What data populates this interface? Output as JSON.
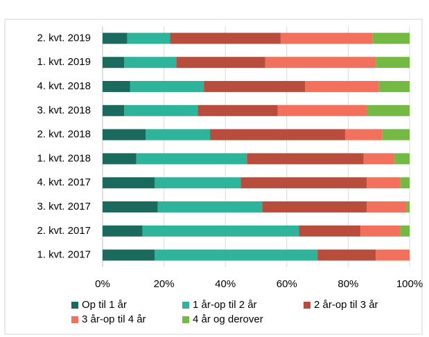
{
  "chart_data": {
    "type": "stacked_bar_horizontal",
    "categories": [
      "2. kvt. 2019",
      "1. kvt. 2019",
      "4. kvt. 2018",
      "3. kvt. 2018",
      "2. kvt. 2018",
      "1. kvt. 2018",
      "4. kvt. 2017",
      "3. kvt. 2017",
      "2. kvt. 2017",
      "1. kvt. 2017"
    ],
    "series": [
      {
        "name": "Op til 1 år",
        "color": "#1a6b5e",
        "values": [
          8,
          7,
          9,
          7,
          14,
          11,
          17,
          18,
          13,
          17
        ]
      },
      {
        "name": "1 år-op til 2 år",
        "color": "#2db49b",
        "values": [
          14,
          17,
          24,
          24,
          21,
          36,
          28,
          34,
          51,
          53
        ]
      },
      {
        "name": "2 år-op til 3 år",
        "color": "#b84d3d",
        "values": [
          36,
          29,
          33,
          26,
          44,
          38,
          41,
          34,
          20,
          19
        ]
      },
      {
        "name": "3 år-op til 4 år",
        "color": "#f2715c",
        "values": [
          30,
          36,
          24,
          29,
          12,
          10,
          11,
          13,
          13,
          11
        ]
      },
      {
        "name": "4 år og derover",
        "color": "#73b944",
        "values": [
          12,
          11,
          10,
          14,
          9,
          5,
          3,
          1,
          3,
          0
        ]
      }
    ],
    "xlim": [
      0,
      100
    ],
    "xticks": [
      {
        "value": 0,
        "label": "0%"
      },
      {
        "value": 20,
        "label": "20%"
      },
      {
        "value": 40,
        "label": "40%"
      },
      {
        "value": 60,
        "label": "60%"
      },
      {
        "value": 80,
        "label": "80%"
      },
      {
        "value": 100,
        "label": "100%"
      }
    ],
    "grid": true,
    "legend": "bottom"
  }
}
